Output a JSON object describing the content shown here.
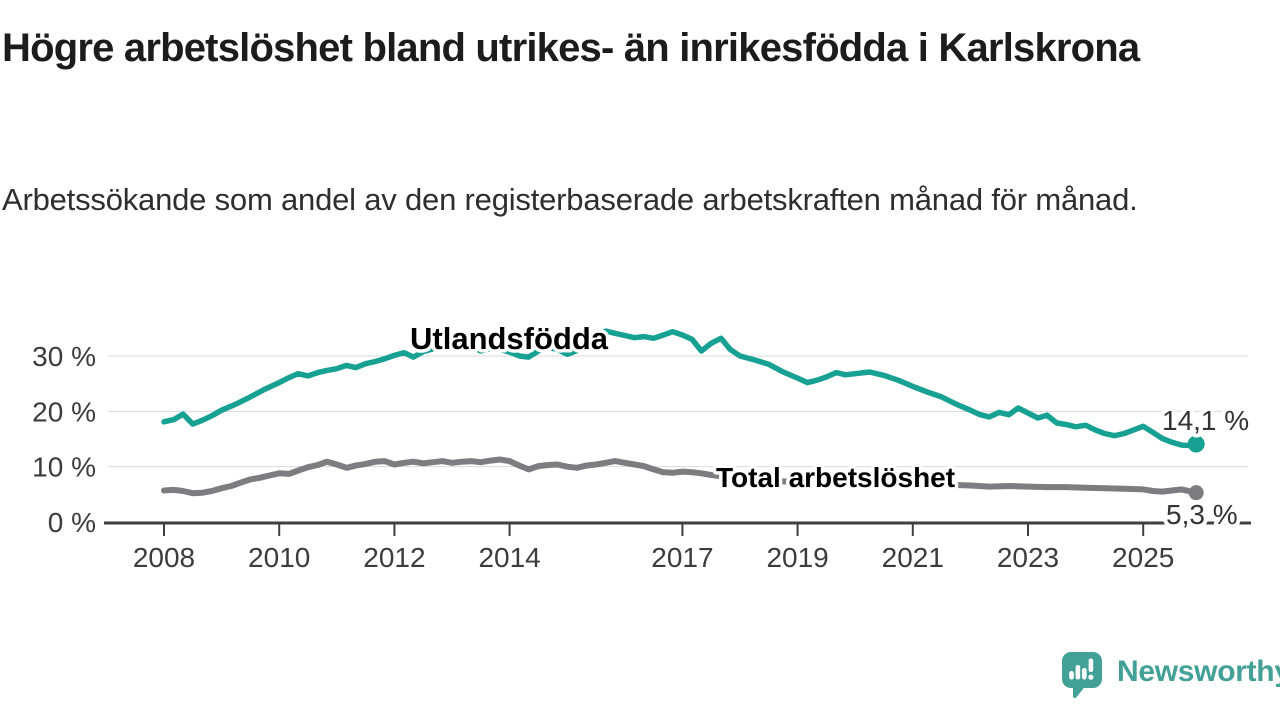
{
  "chart_data": {
    "type": "line",
    "title": "Högre arbetslöshet bland utrikes- än inrikesfödda i Karlskrona",
    "subtitle": "Arbetssökande som andel av den registerbaserade arbetskraften månad för månad.",
    "unit": "%",
    "x_ticks": [
      2008,
      2010,
      2012,
      2014,
      2017,
      2019,
      2021,
      2023,
      2025
    ],
    "y_ticks": [
      {
        "value": 0,
        "label": "0 %"
      },
      {
        "value": 10,
        "label": "10 %"
      },
      {
        "value": 20,
        "label": "20 %"
      },
      {
        "value": 30,
        "label": "30 %"
      }
    ],
    "xlim": [
      2007.0,
      2026.8
    ],
    "ylim": [
      0,
      36
    ],
    "grid": true,
    "legend_position": "inline-labels",
    "series": [
      {
        "name": "Utlandsfödda",
        "color": "#16a193",
        "end_label": "14,1 %",
        "end_value": 14.1,
        "points": [
          [
            2008.0,
            18.1
          ],
          [
            2008.17,
            18.5
          ],
          [
            2008.33,
            19.5
          ],
          [
            2008.5,
            17.7
          ],
          [
            2008.67,
            18.4
          ],
          [
            2008.83,
            19.2
          ],
          [
            2009.0,
            20.2
          ],
          [
            2009.25,
            21.3
          ],
          [
            2009.5,
            22.6
          ],
          [
            2009.75,
            24.0
          ],
          [
            2010.0,
            25.2
          ],
          [
            2010.17,
            26.1
          ],
          [
            2010.33,
            26.8
          ],
          [
            2010.5,
            26.4
          ],
          [
            2010.67,
            27.0
          ],
          [
            2010.83,
            27.4
          ],
          [
            2011.0,
            27.7
          ],
          [
            2011.17,
            28.3
          ],
          [
            2011.33,
            27.9
          ],
          [
            2011.5,
            28.6
          ],
          [
            2011.67,
            29.0
          ],
          [
            2011.83,
            29.5
          ],
          [
            2012.0,
            30.1
          ],
          [
            2012.17,
            30.6
          ],
          [
            2012.33,
            29.8
          ],
          [
            2012.5,
            30.8
          ],
          [
            2012.67,
            31.3
          ],
          [
            2012.83,
            32.1
          ],
          [
            2013.0,
            31.9
          ],
          [
            2013.17,
            31.4
          ],
          [
            2013.33,
            31.8
          ],
          [
            2013.5,
            30.9
          ],
          [
            2013.67,
            31.4
          ],
          [
            2013.83,
            31.2
          ],
          [
            2014.0,
            30.7
          ],
          [
            2014.17,
            30.0
          ],
          [
            2014.33,
            29.8
          ],
          [
            2014.5,
            30.9
          ],
          [
            2014.67,
            31.6
          ],
          [
            2014.83,
            31.2
          ],
          [
            2015.0,
            30.3
          ],
          [
            2015.17,
            31.0
          ],
          [
            2015.33,
            32.0
          ],
          [
            2015.5,
            33.2
          ],
          [
            2015.67,
            34.5
          ],
          [
            2015.83,
            34.1
          ],
          [
            2016.0,
            33.7
          ],
          [
            2016.17,
            33.3
          ],
          [
            2016.33,
            33.5
          ],
          [
            2016.5,
            33.2
          ],
          [
            2016.67,
            33.8
          ],
          [
            2016.83,
            34.4
          ],
          [
            2017.0,
            33.8
          ],
          [
            2017.17,
            33.0
          ],
          [
            2017.33,
            30.9
          ],
          [
            2017.5,
            32.3
          ],
          [
            2017.67,
            33.2
          ],
          [
            2017.83,
            31.2
          ],
          [
            2018.0,
            30.0
          ],
          [
            2018.25,
            29.3
          ],
          [
            2018.5,
            28.5
          ],
          [
            2018.75,
            27.1
          ],
          [
            2019.0,
            26.0
          ],
          [
            2019.17,
            25.2
          ],
          [
            2019.33,
            25.6
          ],
          [
            2019.5,
            26.2
          ],
          [
            2019.67,
            27.0
          ],
          [
            2019.83,
            26.6
          ],
          [
            2020.0,
            26.8
          ],
          [
            2020.25,
            27.1
          ],
          [
            2020.5,
            26.5
          ],
          [
            2020.75,
            25.6
          ],
          [
            2021.0,
            24.5
          ],
          [
            2021.25,
            23.5
          ],
          [
            2021.5,
            22.6
          ],
          [
            2021.75,
            21.3
          ],
          [
            2022.0,
            20.2
          ],
          [
            2022.17,
            19.4
          ],
          [
            2022.33,
            19.0
          ],
          [
            2022.5,
            19.8
          ],
          [
            2022.67,
            19.4
          ],
          [
            2022.83,
            20.6
          ],
          [
            2023.0,
            19.7
          ],
          [
            2023.17,
            18.8
          ],
          [
            2023.33,
            19.3
          ],
          [
            2023.5,
            17.9
          ],
          [
            2023.67,
            17.6
          ],
          [
            2023.83,
            17.2
          ],
          [
            2024.0,
            17.5
          ],
          [
            2024.17,
            16.6
          ],
          [
            2024.33,
            16.0
          ],
          [
            2024.5,
            15.6
          ],
          [
            2024.67,
            16.0
          ],
          [
            2024.83,
            16.6
          ],
          [
            2025.0,
            17.3
          ],
          [
            2025.17,
            16.2
          ],
          [
            2025.33,
            15.1
          ],
          [
            2025.5,
            14.4
          ],
          [
            2025.67,
            13.9
          ],
          [
            2025.83,
            13.8
          ],
          [
            2025.92,
            14.1
          ]
        ]
      },
      {
        "name": "Total arbetslöshet",
        "color": "#7c7c81",
        "end_label": "5,3 %",
        "end_value": 5.3,
        "points": [
          [
            2008.0,
            5.7
          ],
          [
            2008.17,
            5.8
          ],
          [
            2008.33,
            5.6
          ],
          [
            2008.5,
            5.2
          ],
          [
            2008.67,
            5.3
          ],
          [
            2008.83,
            5.6
          ],
          [
            2009.0,
            6.1
          ],
          [
            2009.17,
            6.5
          ],
          [
            2009.33,
            7.1
          ],
          [
            2009.5,
            7.7
          ],
          [
            2009.67,
            8.0
          ],
          [
            2009.83,
            8.4
          ],
          [
            2010.0,
            8.8
          ],
          [
            2010.17,
            8.7
          ],
          [
            2010.33,
            9.3
          ],
          [
            2010.5,
            9.9
          ],
          [
            2010.67,
            10.3
          ],
          [
            2010.83,
            10.9
          ],
          [
            2011.0,
            10.4
          ],
          [
            2011.17,
            9.8
          ],
          [
            2011.33,
            10.2
          ],
          [
            2011.5,
            10.5
          ],
          [
            2011.67,
            10.9
          ],
          [
            2011.83,
            11.0
          ],
          [
            2012.0,
            10.4
          ],
          [
            2012.17,
            10.7
          ],
          [
            2012.33,
            10.9
          ],
          [
            2012.5,
            10.6
          ],
          [
            2012.67,
            10.8
          ],
          [
            2012.83,
            11.0
          ],
          [
            2013.0,
            10.7
          ],
          [
            2013.17,
            10.9
          ],
          [
            2013.33,
            11.0
          ],
          [
            2013.5,
            10.8
          ],
          [
            2013.67,
            11.1
          ],
          [
            2013.83,
            11.3
          ],
          [
            2014.0,
            11.0
          ],
          [
            2014.17,
            10.2
          ],
          [
            2014.33,
            9.5
          ],
          [
            2014.5,
            10.1
          ],
          [
            2014.67,
            10.3
          ],
          [
            2014.83,
            10.4
          ],
          [
            2015.0,
            10.0
          ],
          [
            2015.17,
            9.8
          ],
          [
            2015.33,
            10.2
          ],
          [
            2015.5,
            10.4
          ],
          [
            2015.67,
            10.7
          ],
          [
            2015.83,
            11.0
          ],
          [
            2016.0,
            10.7
          ],
          [
            2016.17,
            10.4
          ],
          [
            2016.33,
            10.1
          ],
          [
            2016.5,
            9.5
          ],
          [
            2016.67,
            9.0
          ],
          [
            2016.83,
            8.9
          ],
          [
            2017.0,
            9.1
          ],
          [
            2017.17,
            9.0
          ],
          [
            2017.33,
            8.8
          ],
          [
            2017.5,
            8.5
          ],
          [
            2017.67,
            8.3
          ],
          [
            2017.83,
            8.1
          ],
          [
            2018.0,
            7.9
          ],
          [
            2018.33,
            7.6
          ],
          [
            2018.67,
            7.4
          ],
          [
            2019.0,
            7.2
          ],
          [
            2019.33,
            7.0
          ],
          [
            2019.67,
            7.0
          ],
          [
            2020.0,
            7.1
          ],
          [
            2020.33,
            7.5
          ],
          [
            2020.67,
            7.4
          ],
          [
            2021.0,
            7.2
          ],
          [
            2021.33,
            6.9
          ],
          [
            2021.67,
            6.7
          ],
          [
            2022.0,
            6.6
          ],
          [
            2022.33,
            6.4
          ],
          [
            2022.67,
            6.5
          ],
          [
            2023.0,
            6.4
          ],
          [
            2023.33,
            6.3
          ],
          [
            2023.67,
            6.3
          ],
          [
            2024.0,
            6.2
          ],
          [
            2024.33,
            6.1
          ],
          [
            2024.67,
            6.0
          ],
          [
            2025.0,
            5.9
          ],
          [
            2025.17,
            5.6
          ],
          [
            2025.33,
            5.5
          ],
          [
            2025.5,
            5.7
          ],
          [
            2025.67,
            5.9
          ],
          [
            2025.83,
            5.5
          ],
          [
            2025.92,
            5.3
          ]
        ]
      }
    ]
  },
  "branding": {
    "logo_text": "Newsworthy",
    "logo_color": "#43a096"
  }
}
